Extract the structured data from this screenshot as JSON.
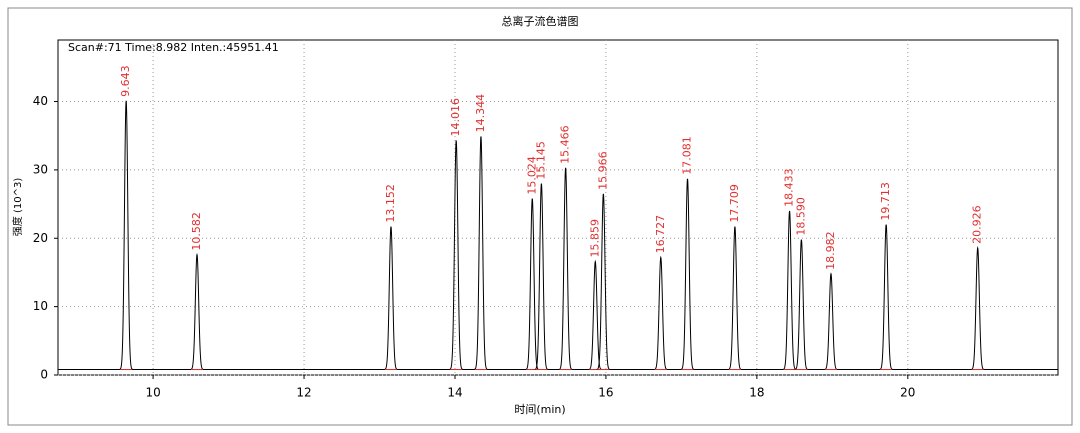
{
  "chart_data": {
    "type": "chromatogram",
    "title": "总离子流色谱图",
    "annotation": "Scan#:71  Time:8.982  Inten.:45951.41",
    "x_label": "时间(min)",
    "y_label": "强度 (10^3)",
    "x": [
      9.643,
      10.582,
      13.152,
      14.016,
      14.344,
      15.024,
      15.145,
      15.466,
      15.859,
      15.966,
      16.727,
      17.081,
      17.709,
      18.433,
      18.59,
      18.982,
      19.713,
      20.926
    ],
    "value_labels": [
      "9.643",
      "10.582",
      "13.152",
      "14.016",
      "14.344",
      "15.024",
      "15.145",
      "15.466",
      "15.859",
      "15.966",
      "16.727",
      "17.081",
      "17.709",
      "18.433",
      "18.590",
      "18.982",
      "19.713",
      "20.926"
    ],
    "values": [
      40.1,
      17.6,
      21.7,
      34.3,
      34.9,
      25.8,
      28.0,
      30.3,
      16.6,
      26.5,
      17.2,
      28.7,
      21.7,
      24.0,
      19.8,
      14.8,
      22.0,
      18.6
    ],
    "baseline": 0.8,
    "color": "#000000",
    "label_color": "#e03030",
    "xlim": [
      8.74,
      21.99
    ],
    "ylim": [
      0,
      49
    ],
    "xticks": [
      10,
      12,
      14,
      16,
      18,
      20
    ],
    "yticks": [
      0,
      10,
      20,
      30,
      40
    ],
    "grid": true
  }
}
